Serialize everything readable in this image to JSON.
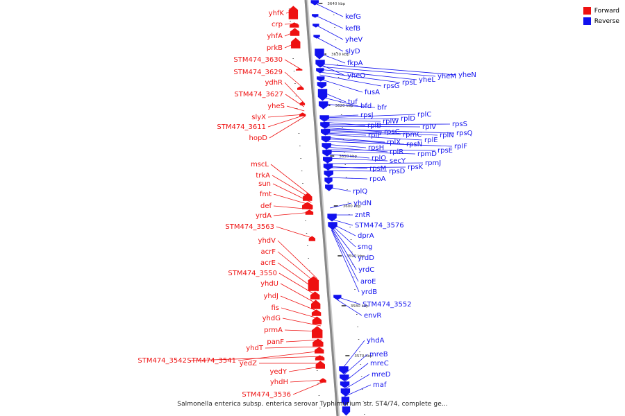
{
  "legend": [
    {
      "label": "Forward",
      "color": "#ee1111"
    },
    {
      "label": "Reverse",
      "color": "#1111ee"
    }
  ],
  "caption": "Salmonella enterica subsp. enterica serovar Typhimurium str. ST4/74, complete ge...",
  "colors": {
    "backbone": "#888888",
    "forward": "#ee1111",
    "reverse": "#1111ee",
    "tick": "#111111"
  },
  "ticks": [
    "3640 kbp",
    "3630 kbp",
    "3620 kbp",
    "3610 kbp",
    "3600 kbp",
    "3590 kbp",
    "3580 kbp",
    "3570 kbp"
  ],
  "forward_genes": [
    "yhfK",
    "crp",
    "yhfA",
    "prkB",
    "STM474_3630",
    "STM474_3629",
    "ydhR",
    "STM474_3627",
    "yheS",
    "slyX",
    "STM474_3611",
    "hopD",
    "mscL",
    "trkA",
    "sun",
    "fmt",
    "def",
    "yrdA",
    "STM474_3563",
    "yhdV",
    "acrF",
    "acrE",
    "STM474_3550",
    "yhdU",
    "yhdJ",
    "fis",
    "yhdG",
    "prmA",
    "panF",
    "yhdT",
    "STM474_3541",
    "STM474_3542",
    "yedZ",
    "yedY",
    "yhdH",
    "STM474_3536"
  ],
  "reverse_genes": [
    "kefG",
    "kefB",
    "yheV",
    "slyD",
    "fkpA",
    "yheO",
    "yheN",
    "yheM",
    "yheL",
    "rpsL",
    "rpsG",
    "fusA",
    "tuf",
    "bfd",
    "bfr",
    "rpsJ",
    "rplC",
    "rplD",
    "rplW",
    "rplB",
    "rpsS",
    "rplV",
    "rpsC",
    "rplP",
    "rpmC",
    "rpsQ",
    "rplN",
    "rplE",
    "rplX",
    "rpsN",
    "rplF",
    "rpsH",
    "rplR",
    "rpsE",
    "rpmD",
    "rplO",
    "secY",
    "rpmJ",
    "rpsM",
    "rpsD",
    "rpsK",
    "rpoA",
    "rplQ",
    "yhdN",
    "zntR",
    "STM474_3576",
    "dprA",
    "smg",
    "yrdD",
    "yrdC",
    "aroE",
    "yrdB",
    "STM474_3552",
    "envR",
    "yhdA",
    "mreB",
    "mreC",
    "mreD",
    "maf"
  ]
}
